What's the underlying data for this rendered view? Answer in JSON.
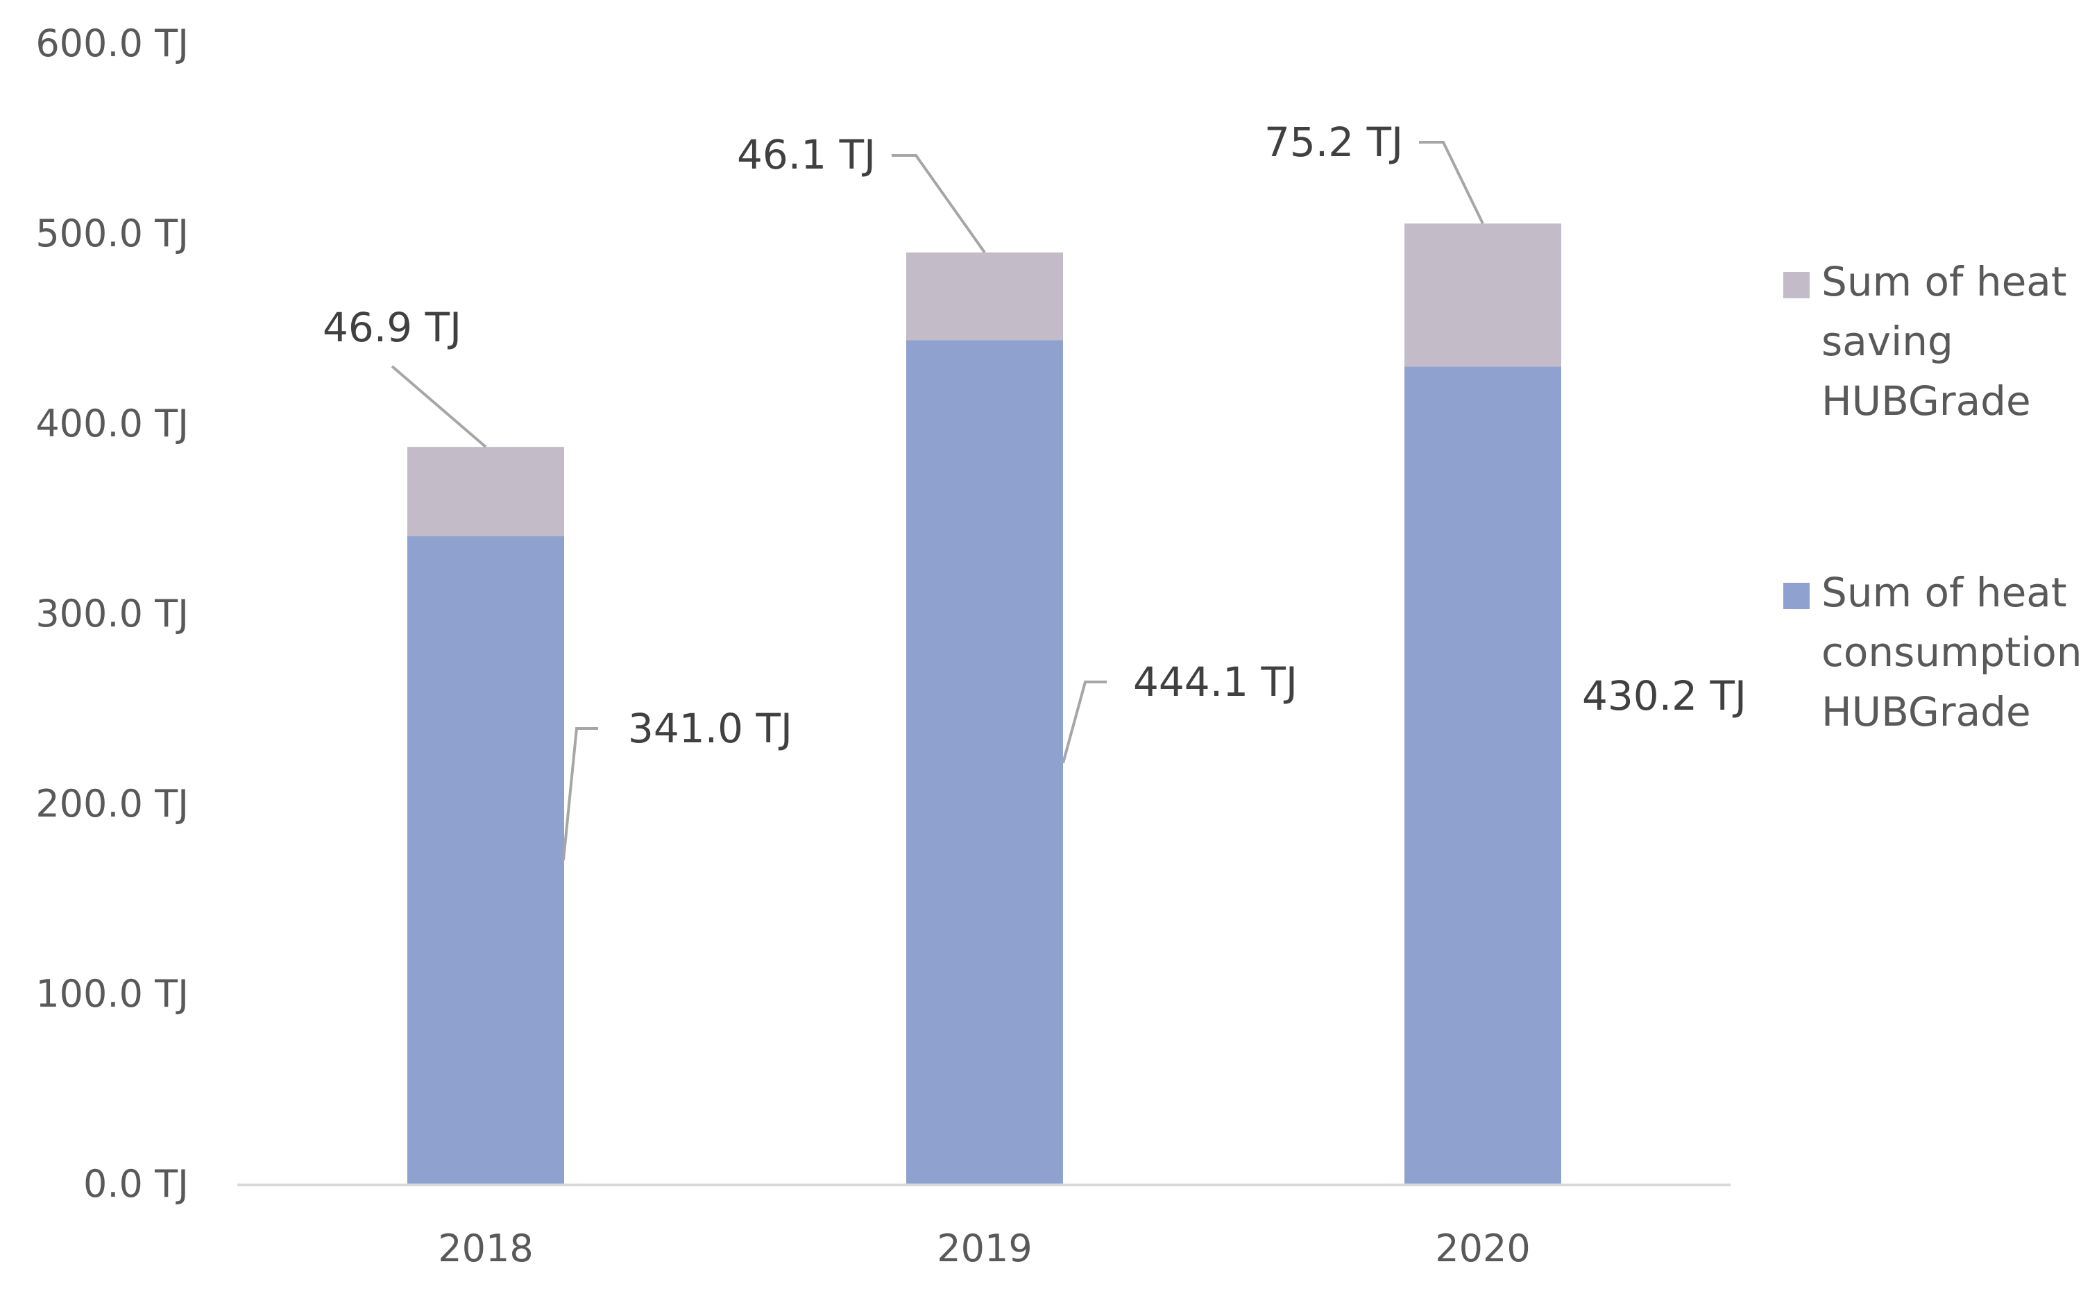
{
  "chart_data": {
    "type": "bar",
    "stacked": true,
    "categories": [
      "2018",
      "2019",
      "2020"
    ],
    "series": [
      {
        "name": "Sum of heat consumption HUBGrade",
        "legend_lines": [
          "Sum of heat",
          "consumption",
          "HUBGrade"
        ],
        "color": "#8fa2cf",
        "values": [
          341.0,
          444.1,
          430.2
        ],
        "labels": [
          "341.0 TJ",
          "444.1 TJ",
          "430.2 TJ"
        ]
      },
      {
        "name": "Sum of heat saving HUBGrade",
        "legend_lines": [
          "Sum of heat",
          "saving",
          "HUBGrade"
        ],
        "color": "#c3bcc8",
        "values": [
          46.9,
          46.1,
          75.2
        ],
        "labels": [
          "46.9 TJ",
          "46.1 TJ",
          "75.2 TJ"
        ]
      }
    ],
    "ylim": [
      0,
      600
    ],
    "yticks": [
      "0.0 TJ",
      "100.0 TJ",
      "200.0 TJ",
      "300.0 TJ",
      "400.0 TJ",
      "500.0 TJ",
      "600.0 TJ"
    ],
    "ytick_values": [
      0,
      100,
      200,
      300,
      400,
      500,
      600
    ],
    "grid": false,
    "legend_position": "right",
    "title": "",
    "xlabel": "",
    "ylabel": ""
  }
}
